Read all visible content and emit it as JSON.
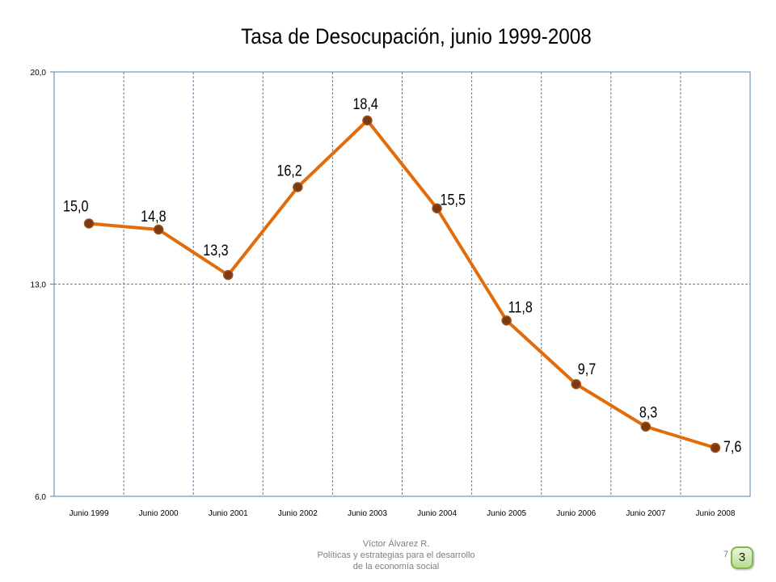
{
  "chart_data": {
    "type": "line",
    "title": "Tasa de Desocupación, junio 1999-2008",
    "categories": [
      "Junio 1999",
      "Junio 2000",
      "Junio 2001",
      "Junio 2002",
      "Junio 2003",
      "Junio 2004",
      "Junio 2005",
      "Junio 2006",
      "Junio 2007",
      "Junio 2008"
    ],
    "values": [
      15.0,
      14.8,
      13.3,
      16.2,
      18.4,
      15.5,
      11.8,
      9.7,
      8.3,
      7.6
    ],
    "data_labels": [
      "15,0",
      "14,8",
      "13,3",
      "16,2",
      "18,4",
      "15,5",
      "11,8",
      "9,7",
      "8,3",
      "7,6"
    ],
    "ylim": [
      6,
      20
    ],
    "y_ticks": [
      {
        "value": 6,
        "label": "6,0"
      },
      {
        "value": 13,
        "label": "13,0"
      },
      {
        "value": 20,
        "label": "20,0"
      }
    ],
    "grid": true,
    "line_color": "#e36c0a",
    "marker_color": "#7b3a12"
  },
  "footer": {
    "lines": [
      "Víctor Álvarez R.",
      "Políticas y estrategias  para el desarrollo",
      "de la economía social"
    ],
    "page_number": "7",
    "badge": "3"
  }
}
